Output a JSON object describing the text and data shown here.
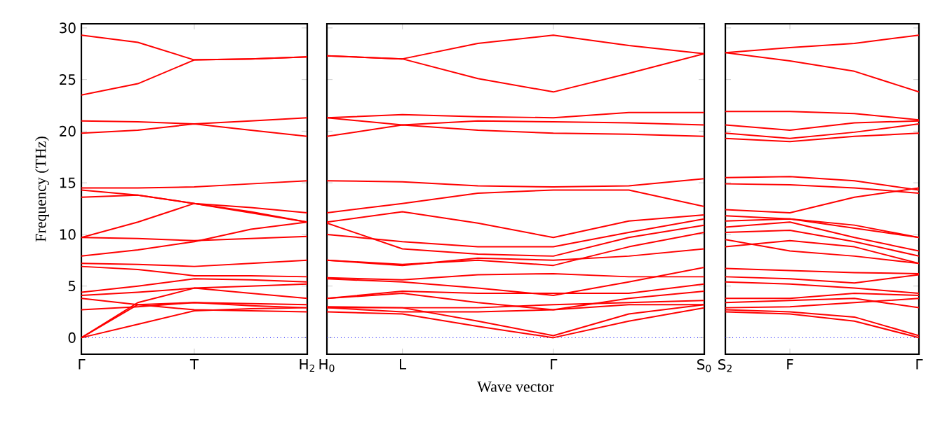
{
  "chart_data": [
    {
      "type": "line",
      "ylabel": "Frequency (THz)",
      "color": "#ff0000",
      "categories": [
        "Γ",
        null,
        "T",
        null,
        "H$_{2}$"
      ],
      "ylim": [
        -1.6,
        30.4
      ],
      "yticks": [
        0,
        5,
        10,
        15,
        20,
        25,
        30
      ],
      "ref_lines": [
        {
          "axis": "y",
          "value": 0,
          "color": "#0000ff",
          "line_style": "dotted"
        }
      ],
      "series": [
        {
          "values": [
            29.3,
            28.6,
            26.9,
            27.0,
            27.2
          ]
        },
        {
          "values": [
            23.5,
            24.6,
            26.9,
            27.0,
            27.2
          ]
        },
        {
          "values": [
            21.0,
            20.9,
            20.7,
            21.0,
            21.3
          ]
        },
        {
          "values": [
            19.8,
            20.1,
            20.7,
            20.1,
            19.5
          ]
        },
        {
          "values": [
            14.5,
            14.5,
            14.6,
            14.9,
            15.2
          ]
        },
        {
          "values": [
            14.3,
            13.8,
            13.0,
            12.6,
            12.1
          ]
        },
        {
          "values": [
            13.6,
            13.8,
            13.0,
            12.1,
            11.2
          ]
        },
        {
          "values": [
            9.7,
            11.2,
            13.0,
            12.2,
            11.2
          ]
        },
        {
          "values": [
            9.7,
            9.6,
            9.4,
            9.6,
            9.8
          ]
        },
        {
          "values": [
            7.9,
            8.5,
            9.3,
            10.5,
            11.2
          ]
        },
        {
          "values": [
            7.2,
            7.1,
            6.9,
            7.2,
            7.5
          ]
        },
        {
          "values": [
            6.9,
            6.6,
            6.0,
            6.0,
            5.9
          ]
        },
        {
          "values": [
            4.4,
            5.0,
            5.7,
            5.6,
            5.4
          ]
        },
        {
          "values": [
            4.1,
            4.4,
            4.8,
            4.3,
            3.8
          ]
        },
        {
          "values": [
            3.8,
            3.2,
            2.7,
            2.6,
            2.5
          ]
        },
        {
          "values": [
            2.7,
            3.0,
            3.4,
            3.3,
            3.2
          ]
        },
        {
          "values": [
            0,
            1.3,
            2.6,
            2.8,
            2.9
          ]
        },
        {
          "values": [
            0,
            3.4,
            4.8,
            5.0,
            5.2
          ]
        },
        {
          "values": [
            0,
            3.2,
            3.4,
            3.1,
            2.9
          ]
        }
      ]
    },
    {
      "type": "line",
      "xlabel": "Wave vector",
      "color": "#ff0000",
      "categories": [
        "H$_{0}$",
        "L",
        null,
        "Γ",
        null,
        "S$_{0}$"
      ],
      "ylim": [
        -1.6,
        30.4
      ],
      "tick_labels": "x",
      "yticks": [
        0,
        5,
        10,
        15,
        20,
        25,
        30
      ],
      "ref_lines": [
        {
          "axis": "y",
          "value": 0,
          "color": "#0000ff",
          "line_style": "dotted"
        }
      ],
      "series": [
        {
          "values": [
            27.3,
            27.0,
            28.5,
            29.3,
            28.3,
            27.5
          ]
        },
        {
          "values": [
            27.3,
            27.0,
            25.1,
            23.8,
            25.6,
            27.5
          ]
        },
        {
          "values": [
            21.3,
            21.6,
            21.4,
            21.3,
            21.8,
            21.8
          ]
        },
        {
          "values": [
            21.3,
            20.6,
            21.0,
            20.9,
            20.8,
            20.6
          ]
        },
        {
          "values": [
            19.5,
            20.6,
            20.1,
            19.8,
            19.7,
            19.5
          ]
        },
        {
          "values": [
            15.2,
            15.1,
            14.7,
            14.6,
            14.7,
            15.4
          ]
        },
        {
          "values": [
            12.1,
            13.0,
            14.0,
            14.3,
            14.3,
            12.7
          ]
        },
        {
          "values": [
            11.2,
            12.2,
            11.1,
            9.7,
            11.3,
            11.9
          ]
        },
        {
          "values": [
            10.0,
            9.3,
            8.8,
            8.8,
            10.2,
            11.5
          ]
        },
        {
          "values": [
            11.1,
            8.6,
            8.1,
            7.9,
            9.7,
            10.9
          ]
        },
        {
          "values": [
            7.5,
            7.1,
            7.5,
            7.0,
            8.8,
            10.2
          ]
        },
        {
          "values": [
            7.5,
            7.0,
            7.7,
            7.5,
            7.9,
            8.6
          ]
        },
        {
          "values": [
            5.7,
            5.4,
            4.8,
            4.1,
            5.4,
            6.8
          ]
        },
        {
          "values": [
            5.8,
            5.6,
            6.1,
            6.2,
            5.9,
            5.9
          ]
        },
        {
          "values": [
            3.8,
            4.5,
            4.3,
            4.3,
            4.3,
            5.2
          ]
        },
        {
          "values": [
            3.0,
            2.9,
            2.9,
            3.2,
            3.4,
            3.6
          ]
        },
        {
          "values": [
            2.9,
            2.5,
            2.5,
            2.7,
            3.2,
            3.2
          ]
        },
        {
          "values": [
            2.9,
            2.9,
            1.6,
            0.2,
            2.3,
            3.2
          ]
        },
        {
          "values": [
            2.5,
            2.3,
            1.1,
            0,
            1.6,
            2.9
          ]
        },
        {
          "values": [
            3.8,
            4.3,
            3.4,
            2.7,
            3.8,
            4.5
          ]
        }
      ]
    },
    {
      "type": "line",
      "color": "#ff0000",
      "categories": [
        "S$_{2}$",
        "F",
        null,
        "Γ"
      ],
      "ylim": [
        -1.6,
        30.4
      ],
      "tick_labels": "x",
      "yticks": [
        0,
        5,
        10,
        15,
        20,
        25,
        30
      ],
      "ref_lines": [
        {
          "axis": "y",
          "value": 0,
          "color": "#0000ff",
          "line_style": "dotted"
        }
      ],
      "series": [
        {
          "values": [
            27.6,
            28.1,
            28.5,
            29.3
          ]
        },
        {
          "values": [
            27.6,
            26.8,
            25.8,
            23.8
          ]
        },
        {
          "values": [
            21.9,
            21.9,
            21.7,
            21.1
          ]
        },
        {
          "values": [
            20.6,
            20.1,
            20.8,
            21.0
          ]
        },
        {
          "values": [
            19.8,
            19.3,
            19.9,
            20.7
          ]
        },
        {
          "values": [
            19.3,
            19.0,
            19.5,
            19.8
          ]
        },
        {
          "values": [
            15.5,
            15.6,
            15.2,
            14.3
          ]
        },
        {
          "values": [
            14.9,
            14.8,
            14.5,
            14.0
          ]
        },
        {
          "values": [
            12.4,
            12.1,
            13.6,
            14.5
          ]
        },
        {
          "values": [
            11.8,
            11.5,
            10.9,
            9.7
          ]
        },
        {
          "values": [
            11.3,
            11.5,
            10.6,
            9.7
          ]
        },
        {
          "values": [
            10.7,
            11.2,
            9.7,
            8.4
          ]
        },
        {
          "values": [
            10.2,
            10.4,
            9.3,
            7.9
          ]
        },
        {
          "values": [
            8.8,
            9.4,
            8.8,
            7.2
          ]
        },
        {
          "values": [
            9.5,
            8.4,
            7.9,
            7.2
          ]
        },
        {
          "values": [
            6.7,
            6.5,
            6.3,
            6.2
          ]
        },
        {
          "values": [
            5.9,
            5.7,
            5.3,
            6.1
          ]
        },
        {
          "values": [
            5.4,
            5.2,
            4.8,
            4.3
          ]
        },
        {
          "values": [
            3.8,
            3.8,
            4.3,
            4.1
          ]
        },
        {
          "values": [
            3.4,
            3.6,
            3.8,
            2.9
          ]
        },
        {
          "values": [
            2.9,
            3.0,
            3.4,
            3.8
          ]
        },
        {
          "values": [
            2.7,
            2.5,
            2.0,
            0.2
          ]
        },
        {
          "values": [
            2.5,
            2.3,
            1.6,
            0
          ]
        }
      ]
    }
  ]
}
